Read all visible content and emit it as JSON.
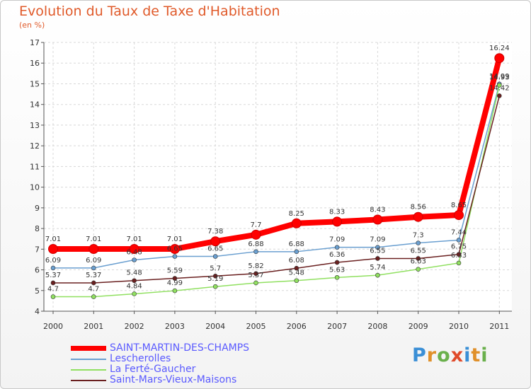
{
  "title": "Evolution du Taux de Taxe d'Habitation",
  "subtitle": "(en %)",
  "logo": {
    "text": "Proxiti",
    "letter_colors": [
      "#3a8fd6",
      "#e0902a",
      "#6ab04c",
      "#e04a2a",
      "#3a8fd6",
      "#e0902a",
      "#6ab04c"
    ]
  },
  "chart_data": {
    "type": "line",
    "x": [
      "2000",
      "2001",
      "2002",
      "2003",
      "2004",
      "2005",
      "2006",
      "2007",
      "2008",
      "2009",
      "2010",
      "2011"
    ],
    "ylim": [
      4,
      17
    ],
    "yticks": [
      "4",
      "5",
      "6",
      "7",
      "8",
      "9",
      "10",
      "11",
      "12",
      "13",
      "14",
      "15",
      "16",
      "17"
    ],
    "grid": true,
    "legend_position": "bottom-left",
    "series": [
      {
        "name": "SAINT-MARTIN-DES-CHAMPS",
        "color": "#ff0000",
        "thick": true,
        "values": [
          7.01,
          7.01,
          7.01,
          7.01,
          7.38,
          7.7,
          8.25,
          8.33,
          8.43,
          8.56,
          8.65,
          16.24
        ],
        "labels": [
          "7.01",
          "7.01",
          "7.01",
          "7.01",
          "7.38",
          "7.7",
          "8.25",
          "8.33",
          "8.43",
          "8.56",
          "8.65",
          "16.24"
        ]
      },
      {
        "name": "Lescherolles",
        "color": "#6a9fd0",
        "thick": false,
        "values": [
          6.09,
          6.09,
          6.48,
          6.65,
          6.65,
          6.88,
          6.88,
          7.09,
          7.09,
          7.3,
          7.44,
          14.99
        ],
        "labels": [
          "6.09",
          "6.09",
          "6.48",
          "6.65",
          "6.65",
          "6.88",
          "6.88",
          "7.09",
          "7.09",
          "7.3",
          "7.44",
          "14.99"
        ]
      },
      {
        "name": "La Ferté-Gaucher",
        "color": "#90e060",
        "thick": false,
        "values": [
          4.7,
          4.7,
          4.84,
          4.99,
          5.19,
          5.37,
          5.48,
          5.63,
          5.74,
          6.03,
          6.33,
          14.93
        ],
        "labels": [
          "4.7",
          "4.7",
          "4.84",
          "4.99",
          "5.19",
          "5.37",
          "5.48",
          "5.63",
          "5.74",
          "6.03",
          "6.33",
          "14.93"
        ]
      },
      {
        "name": "Saint-Mars-Vieux-Maisons",
        "color": "#6a2020",
        "thick": false,
        "values": [
          5.37,
          5.37,
          5.48,
          5.59,
          5.7,
          5.82,
          6.08,
          6.36,
          6.55,
          6.55,
          6.75,
          14.42
        ],
        "labels": [
          "5.37",
          "5.37",
          "5.48",
          "5.59",
          "5.7",
          "5.82",
          "6.08",
          "6.36",
          "6.55",
          "6.55",
          "6.75",
          "14.42"
        ]
      }
    ]
  }
}
